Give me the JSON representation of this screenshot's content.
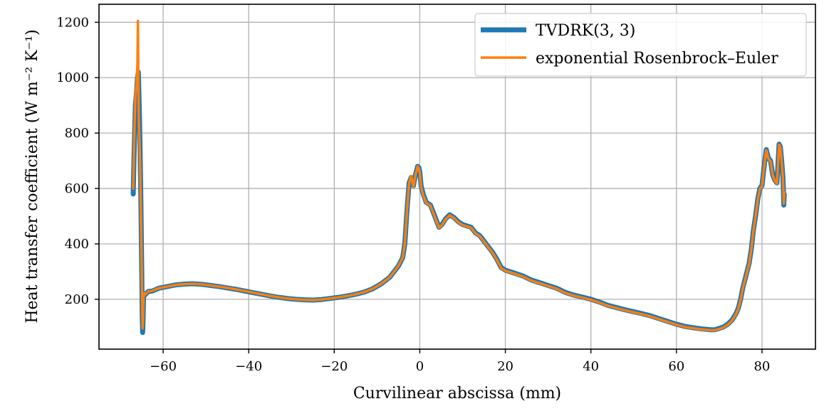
{
  "chart_data": {
    "type": "line",
    "xlabel": "Curvilinear abscissa (mm)",
    "ylabel": "Heat transfer coefficient (W m⁻² K⁻¹)",
    "xlim": [
      -75,
      92.5
    ],
    "ylim": [
      20,
      1265
    ],
    "x_ticks": [
      -60,
      -40,
      -20,
      0,
      20,
      40,
      60,
      80
    ],
    "x_tick_labels": [
      "−60",
      "−40",
      "−20",
      "0",
      "20",
      "40",
      "60",
      "80"
    ],
    "y_ticks": [
      200,
      400,
      600,
      800,
      1000,
      1200
    ],
    "y_tick_labels": [
      "200",
      "400",
      "600",
      "800",
      "1000",
      "1200"
    ],
    "grid": true,
    "legend_position": "top-right",
    "series": [
      {
        "name": "TVDRK(3, 3)",
        "color": "#1f77b4",
        "x": [
          -67,
          -66.8,
          -66.5,
          -66.2,
          -66,
          -65.8,
          -65.6,
          -65.4,
          -65.2,
          -65.1,
          -65,
          -64.9,
          -64.8,
          -64.7,
          -64.6,
          -64.5,
          -64.3,
          -64,
          -63.5,
          -62.5,
          -61,
          -59,
          -57,
          -55,
          -53,
          -51,
          -49,
          -47,
          -45,
          -43,
          -41,
          -39,
          -37,
          -35,
          -33,
          -31,
          -29,
          -27,
          -25,
          -23,
          -21,
          -19,
          -17,
          -15,
          -13,
          -11,
          -9,
          -7,
          -5,
          -4,
          -3.5,
          -3,
          -2.5,
          -2,
          -1.5,
          -1,
          -0.5,
          -0.2,
          0,
          0.3,
          0.8,
          1.5,
          2.5,
          3.5,
          4.5,
          5.2,
          6,
          7,
          8,
          9,
          10,
          11,
          12,
          13,
          14,
          15,
          16,
          17,
          18,
          19,
          20,
          22,
          24,
          26,
          28,
          30,
          32,
          34,
          36,
          38,
          40,
          42,
          44,
          46,
          48,
          50,
          52,
          54,
          56,
          58,
          60,
          62,
          64,
          66,
          68,
          69,
          70,
          71,
          72,
          73,
          74,
          74.5,
          75,
          75.5,
          76,
          76.5,
          77,
          77.5,
          78,
          78.5,
          79,
          79.5,
          80,
          80.5,
          81,
          81.5,
          82,
          82.5,
          83,
          83.5,
          84,
          84.3,
          84.6,
          84.9,
          85,
          85.1,
          85.2
        ],
        "values": [
          580,
          720,
          900,
          950,
          1000,
          1020,
          900,
          750,
          550,
          420,
          300,
          150,
          80,
          120,
          200,
          220,
          215,
          220,
          228,
          230,
          240,
          246,
          252,
          255,
          256,
          254,
          250,
          246,
          241,
          236,
          230,
          224,
          218,
          212,
          207,
          203,
          200,
          198,
          197,
          199,
          203,
          207,
          212,
          218,
          226,
          238,
          256,
          280,
          320,
          350,
          400,
          520,
          620,
          640,
          610,
          650,
          680,
          675,
          660,
          610,
          580,
          550,
          540,
          500,
          460,
          470,
          490,
          505,
          495,
          480,
          470,
          465,
          460,
          440,
          430,
          410,
          390,
          370,
          345,
          315,
          305,
          295,
          285,
          270,
          260,
          250,
          240,
          225,
          215,
          208,
          200,
          190,
          178,
          170,
          162,
          155,
          148,
          140,
          130,
          120,
          110,
          102,
          97,
          93,
          90,
          90,
          95,
          100,
          110,
          125,
          150,
          170,
          200,
          240,
          270,
          300,
          330,
          380,
          450,
          500,
          560,
          600,
          610,
          680,
          740,
          710,
          700,
          650,
          630,
          620,
          760,
          750,
          700,
          640,
          600,
          540,
          580
        ]
      },
      {
        "name": "exponential Rosenbrock–Euler",
        "color": "#ff7f0e",
        "x": [
          -67,
          -66.8,
          -66.5,
          -66.2,
          -66,
          -65.9,
          -65.8,
          -65.7,
          -65.6,
          -65.4,
          -65.2,
          -65.1,
          -65,
          -64.9,
          -64.8,
          -64.7,
          -64.6,
          -64.5,
          -64.3,
          -64,
          -63.5,
          -62.5,
          -61,
          -59,
          -57,
          -55,
          -53,
          -51,
          -49,
          -47,
          -45,
          -43,
          -41,
          -39,
          -37,
          -35,
          -33,
          -31,
          -29,
          -27,
          -25,
          -23,
          -21,
          -19,
          -17,
          -15,
          -13,
          -11,
          -9,
          -7,
          -5,
          -4,
          -3.5,
          -3,
          -2.5,
          -2,
          -1.5,
          -1,
          -0.5,
          -0.2,
          0,
          0.3,
          0.8,
          1.5,
          2.5,
          3.5,
          4.5,
          5.2,
          6,
          7,
          8,
          9,
          10,
          11,
          12,
          13,
          14,
          15,
          16,
          17,
          18,
          19,
          20,
          22,
          24,
          26,
          28,
          30,
          32,
          34,
          36,
          38,
          40,
          42,
          44,
          46,
          48,
          50,
          52,
          54,
          56,
          58,
          60,
          62,
          64,
          66,
          68,
          69,
          70,
          71,
          72,
          73,
          74,
          74.5,
          75,
          75.5,
          76,
          76.5,
          77,
          77.5,
          78,
          78.5,
          79,
          79.5,
          80,
          80.5,
          81,
          81.5,
          82,
          82.5,
          83,
          83.5,
          84,
          84.3,
          84.6,
          84.9,
          85,
          85.1,
          85.2
        ],
        "values": [
          600,
          760,
          930,
          980,
          1050,
          1205,
          1000,
          850,
          800,
          700,
          520,
          400,
          290,
          160,
          95,
          130,
          205,
          222,
          216,
          221,
          228,
          231,
          240,
          246,
          252,
          255,
          256,
          254,
          250,
          246,
          241,
          236,
          230,
          224,
          218,
          212,
          207,
          203,
          200,
          198,
          197,
          199,
          203,
          207,
          212,
          218,
          226,
          238,
          256,
          280,
          320,
          350,
          400,
          520,
          620,
          645,
          605,
          650,
          680,
          670,
          655,
          605,
          575,
          548,
          538,
          498,
          458,
          468,
          488,
          503,
          493,
          478,
          468,
          463,
          458,
          438,
          428,
          408,
          388,
          368,
          343,
          313,
          303,
          293,
          283,
          268,
          258,
          248,
          238,
          223,
          213,
          206,
          198,
          188,
          176,
          168,
          160,
          153,
          146,
          138,
          128,
          118,
          108,
          100,
          95,
          91,
          88,
          88,
          93,
          98,
          108,
          123,
          148,
          168,
          198,
          238,
          268,
          298,
          328,
          378,
          448,
          498,
          558,
          598,
          608,
          678,
          738,
          708,
          698,
          648,
          628,
          618,
          758,
          748,
          698,
          638,
          598,
          545,
          585
        ]
      }
    ]
  }
}
